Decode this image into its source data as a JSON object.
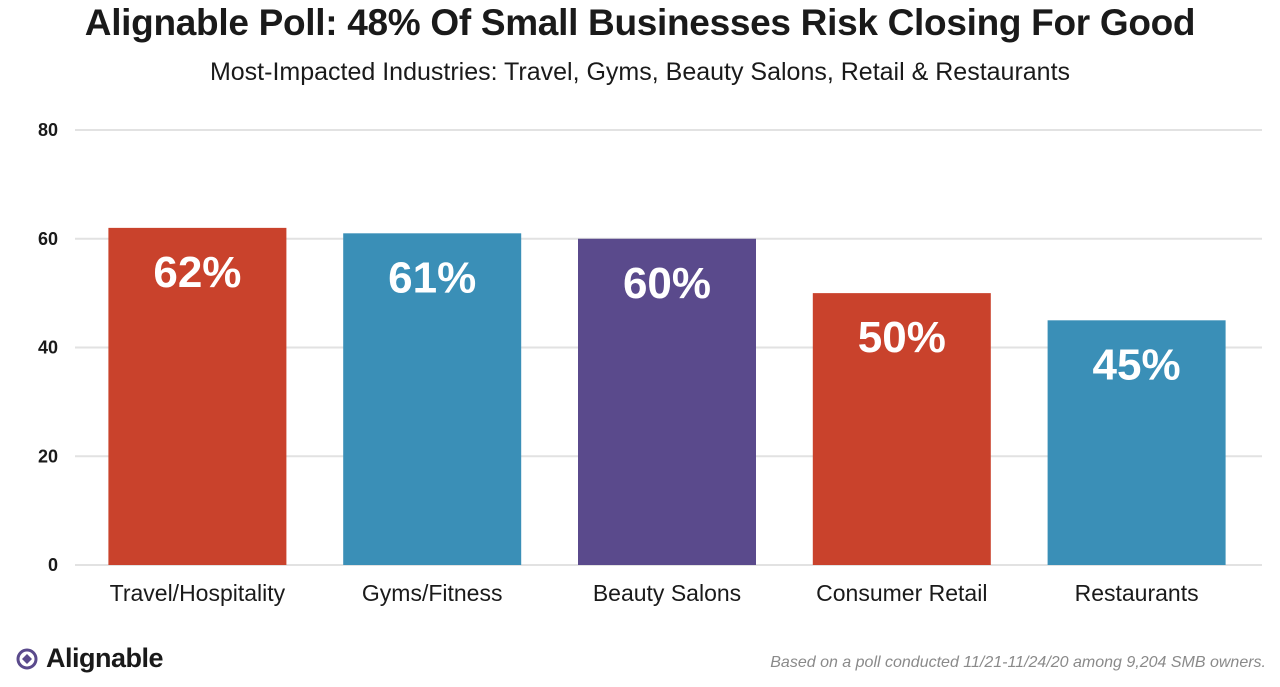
{
  "header": {
    "title": "Alignable Poll: 48% Of Small Businesses Risk Closing For Good",
    "subtitle": "Most-Impacted Industries: Travel, Gyms, Beauty Salons, Retail & Restaurants"
  },
  "chart_data": {
    "type": "bar",
    "title": "Alignable Poll: 48% Of Small Businesses Risk Closing For Good",
    "subtitle": "Most-Impacted Industries: Travel, Gyms, Beauty Salons, Retail & Restaurants",
    "categories": [
      "Travel/Hospitality",
      "Gyms/Fitness",
      "Beauty Salons",
      "Consumer Retail",
      "Restaurants"
    ],
    "values": [
      62,
      61,
      60,
      50,
      45
    ],
    "data_labels": [
      "62%",
      "61%",
      "60%",
      "50%",
      "45%"
    ],
    "colors": [
      "#c9422c",
      "#3a8fb7",
      "#5a4a8c",
      "#c9422c",
      "#3a8fb7"
    ],
    "xlabel": "",
    "ylabel": "",
    "ylim": [
      0,
      80
    ],
    "yticks": [
      0,
      20,
      40,
      60,
      80
    ],
    "grid": true,
    "legend": "none"
  },
  "footer": {
    "brand": "Alignable",
    "brand_icon": "alignable-logo-icon",
    "brand_color": "#5a4a8c",
    "note": "Based on a poll conducted 11/21-11/24/20 among 9,204 SMB owners."
  }
}
